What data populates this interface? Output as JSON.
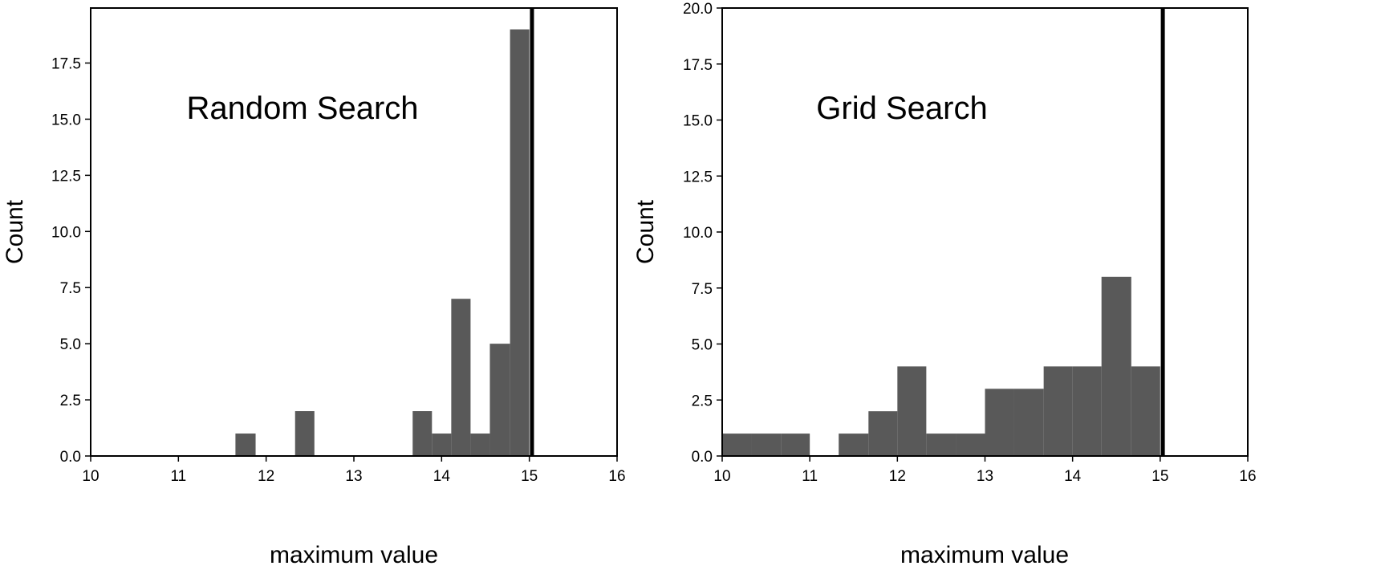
{
  "chart_data": [
    {
      "type": "bar",
      "histogram": true,
      "title": "Random Search",
      "xlabel": "maximum value",
      "ylabel": "Count",
      "xlim": [
        10,
        16
      ],
      "ylim": [
        0,
        19.95
      ],
      "xticks": [
        "10",
        "11",
        "12",
        "13",
        "14",
        "15",
        "16"
      ],
      "yticks": [
        "0.0",
        "2.5",
        "5.0",
        "7.5",
        "10.0",
        "12.5",
        "15.0",
        "17.5"
      ],
      "bins": [
        {
          "x0": 11.65,
          "x1": 11.88,
          "count": 1
        },
        {
          "x0": 12.33,
          "x1": 12.55,
          "count": 2
        },
        {
          "x0": 13.67,
          "x1": 13.89,
          "count": 2
        },
        {
          "x0": 13.89,
          "x1": 14.11,
          "count": 1
        },
        {
          "x0": 14.11,
          "x1": 14.33,
          "count": 7
        },
        {
          "x0": 14.33,
          "x1": 14.55,
          "count": 1
        },
        {
          "x0": 14.55,
          "x1": 14.78,
          "count": 5
        },
        {
          "x0": 14.78,
          "x1": 15.0,
          "count": 19
        }
      ],
      "vline": 15.03,
      "bar_color": "#595959",
      "vline_color": "#000000"
    },
    {
      "type": "bar",
      "histogram": true,
      "title": "Grid Search",
      "xlabel": "maximum value",
      "ylabel": "Count",
      "xlim": [
        10,
        16
      ],
      "ylim": [
        0,
        20
      ],
      "xticks": [
        "10",
        "11",
        "12",
        "13",
        "14",
        "15",
        "16"
      ],
      "yticks": [
        "0.0",
        "2.5",
        "5.0",
        "7.5",
        "10.0",
        "12.5",
        "15.0",
        "17.5",
        "20.0"
      ],
      "bins": [
        {
          "x0": 10.0,
          "x1": 10.33,
          "count": 1
        },
        {
          "x0": 10.33,
          "x1": 10.67,
          "count": 1
        },
        {
          "x0": 10.67,
          "x1": 11.0,
          "count": 1
        },
        {
          "x0": 11.33,
          "x1": 11.67,
          "count": 1
        },
        {
          "x0": 11.67,
          "x1": 12.0,
          "count": 2
        },
        {
          "x0": 12.0,
          "x1": 12.33,
          "count": 4
        },
        {
          "x0": 12.33,
          "x1": 12.67,
          "count": 1
        },
        {
          "x0": 12.67,
          "x1": 13.0,
          "count": 1
        },
        {
          "x0": 13.0,
          "x1": 13.33,
          "count": 3
        },
        {
          "x0": 13.33,
          "x1": 13.67,
          "count": 3
        },
        {
          "x0": 13.67,
          "x1": 14.0,
          "count": 4
        },
        {
          "x0": 14.0,
          "x1": 14.33,
          "count": 4
        },
        {
          "x0": 14.33,
          "x1": 14.67,
          "count": 8
        },
        {
          "x0": 14.67,
          "x1": 15.0,
          "count": 4
        }
      ],
      "vline": 15.03,
      "bar_color": "#595959",
      "vline_color": "#000000"
    }
  ]
}
